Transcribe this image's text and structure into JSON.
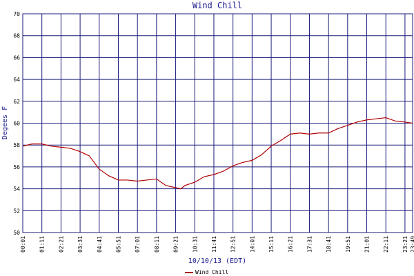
{
  "chart_data": {
    "type": "line",
    "title": "Wind Chill",
    "xlabel": "10/10/13 (EDT)",
    "ylabel": "Degees F",
    "x": [
      1,
      35,
      71,
      105,
      141,
      175,
      211,
      245,
      281,
      315,
      351,
      385,
      421,
      455,
      491,
      525,
      561,
      580,
      595,
      631,
      665,
      701,
      735,
      771,
      805,
      841,
      875,
      911,
      945,
      981,
      1015,
      1051,
      1085,
      1121,
      1155,
      1191,
      1225,
      1261,
      1295,
      1331,
      1365,
      1401,
      1429
    ],
    "series": [
      {
        "name": "Wind Chill",
        "color": "#b00000",
        "values": [
          57.9,
          58.1,
          58.1,
          57.9,
          57.8,
          57.7,
          57.4,
          57.0,
          55.8,
          55.2,
          54.8,
          54.8,
          54.7,
          54.8,
          54.9,
          54.3,
          54.1,
          54.0,
          54.3,
          54.6,
          55.1,
          55.3,
          55.6,
          56.1,
          56.4,
          56.6,
          57.1,
          57.9,
          58.4,
          59.0,
          59.1,
          59.0,
          59.1,
          59.1,
          59.5,
          59.8,
          60.1,
          60.3,
          60.4,
          60.5,
          60.2,
          60.1,
          60.0
        ]
      }
    ],
    "xlim": [
      1,
      1429
    ],
    "xticks": [
      {
        "value": 1,
        "label": "00:01"
      },
      {
        "value": 71,
        "label": "01:11"
      },
      {
        "value": 141,
        "label": "02:21"
      },
      {
        "value": 211,
        "label": "03:31"
      },
      {
        "value": 281,
        "label": "04:41"
      },
      {
        "value": 351,
        "label": "05:51"
      },
      {
        "value": 421,
        "label": "07:01"
      },
      {
        "value": 491,
        "label": "08:11"
      },
      {
        "value": 561,
        "label": "09:21"
      },
      {
        "value": 631,
        "label": "10:31"
      },
      {
        "value": 701,
        "label": "11:41"
      },
      {
        "value": 771,
        "label": "12:51"
      },
      {
        "value": 841,
        "label": "14:01"
      },
      {
        "value": 911,
        "label": "15:11"
      },
      {
        "value": 981,
        "label": "16:21"
      },
      {
        "value": 1051,
        "label": "17:31"
      },
      {
        "value": 1121,
        "label": "18:41"
      },
      {
        "value": 1191,
        "label": "19:51"
      },
      {
        "value": 1261,
        "label": "21:01"
      },
      {
        "value": 1331,
        "label": "22:11"
      },
      {
        "value": 1401,
        "label": "23:21"
      },
      {
        "value": 1429,
        "label": "23:49"
      }
    ],
    "ylim": [
      50,
      70
    ],
    "yticks": [
      50,
      52,
      54,
      56,
      58,
      60,
      62,
      64,
      66,
      68,
      70
    ],
    "grid": true,
    "grid_color": "#1a1a7a"
  }
}
